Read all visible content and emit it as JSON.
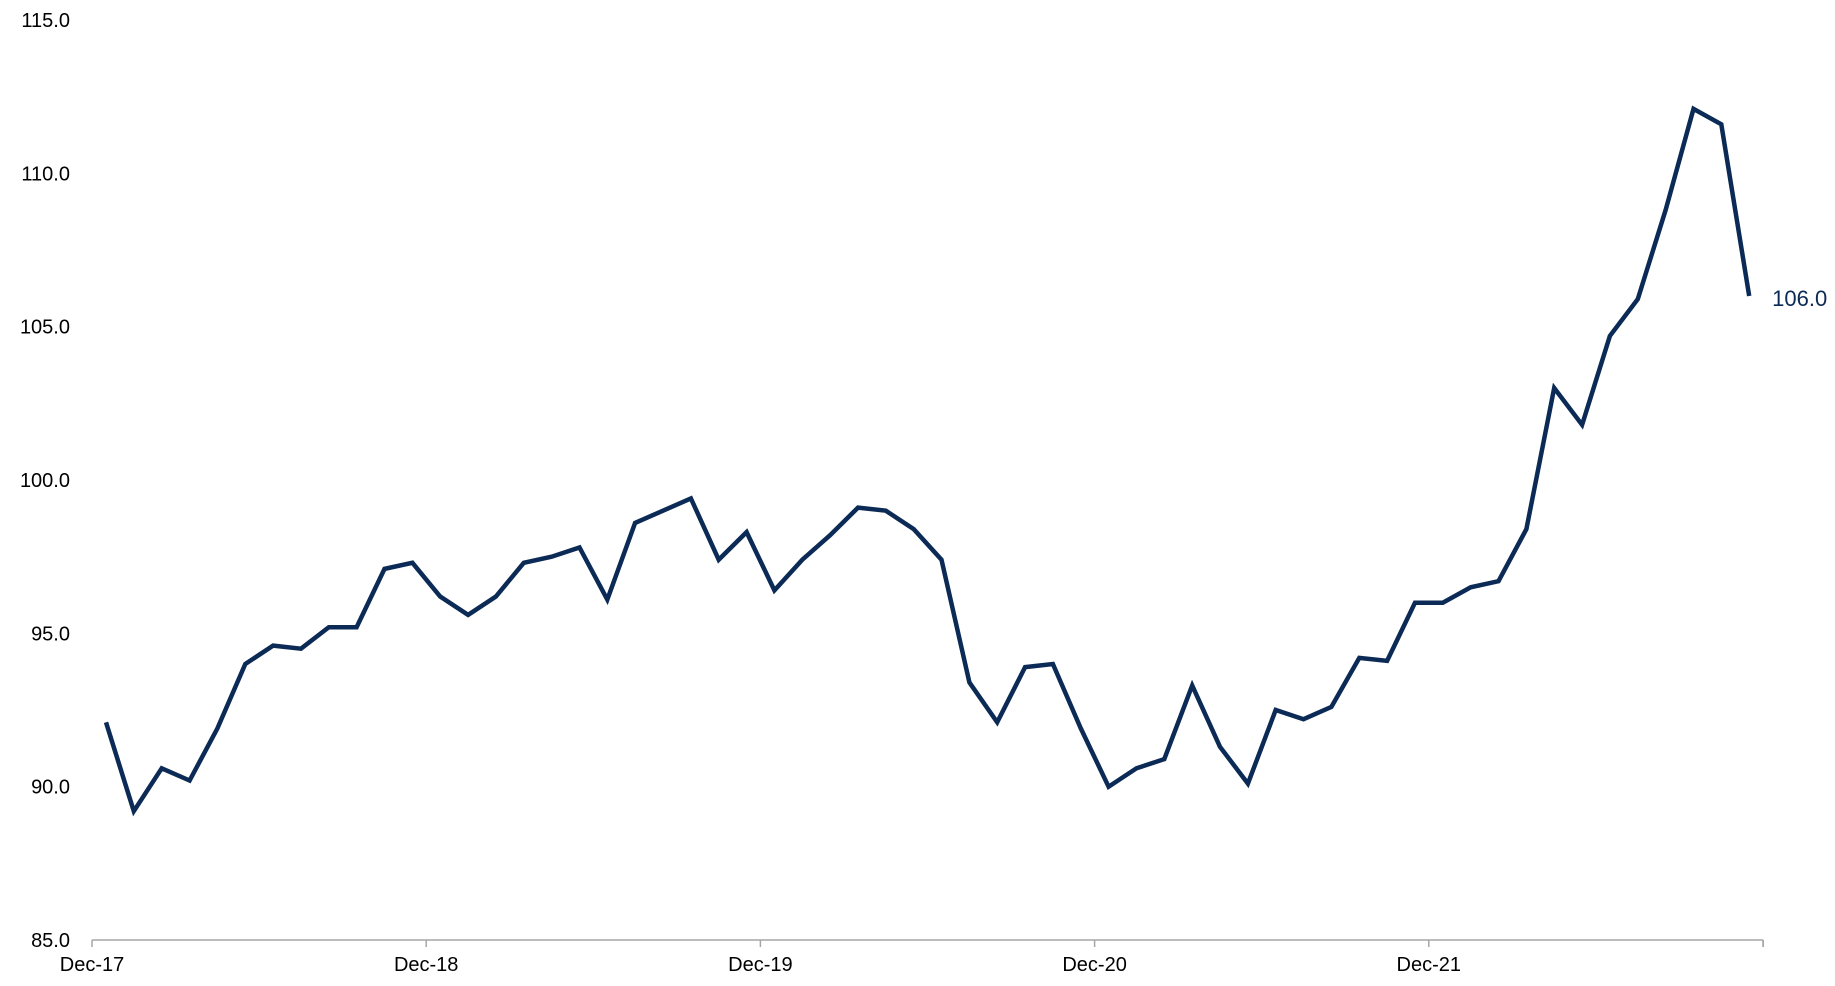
{
  "chart_data": {
    "type": "line",
    "title": "",
    "xlabel": "",
    "ylabel": "",
    "ylim": [
      85,
      115
    ],
    "yticks": [
      "85.0",
      "90.0",
      "95.0",
      "100.0",
      "105.0",
      "110.0",
      "115.0"
    ],
    "xticks": [
      "Dec-17",
      "Dec-18",
      "Dec-19",
      "Dec-20",
      "Dec-21"
    ],
    "grid": false,
    "legend": "none",
    "series": [
      {
        "color": "#0b2a55",
        "values": [
          92.1,
          89.2,
          90.6,
          90.2,
          91.9,
          94.0,
          94.6,
          94.5,
          95.2,
          95.2,
          97.1,
          97.3,
          96.2,
          95.6,
          96.2,
          97.3,
          97.5,
          97.8,
          96.1,
          98.6,
          99.0,
          99.4,
          97.4,
          98.3,
          96.4,
          97.4,
          98.2,
          99.1,
          99.0,
          98.4,
          97.4,
          93.4,
          92.1,
          93.9,
          94.0,
          91.9,
          90.0,
          90.6,
          90.9,
          93.3,
          91.3,
          90.1,
          92.5,
          92.2,
          92.6,
          94.2,
          94.1,
          96.0,
          96.0,
          96.5,
          96.7,
          98.4,
          103.0,
          101.8,
          104.7,
          105.9,
          108.8,
          112.1,
          111.6,
          106.0
        ]
      }
    ],
    "last_label": "106.0"
  }
}
